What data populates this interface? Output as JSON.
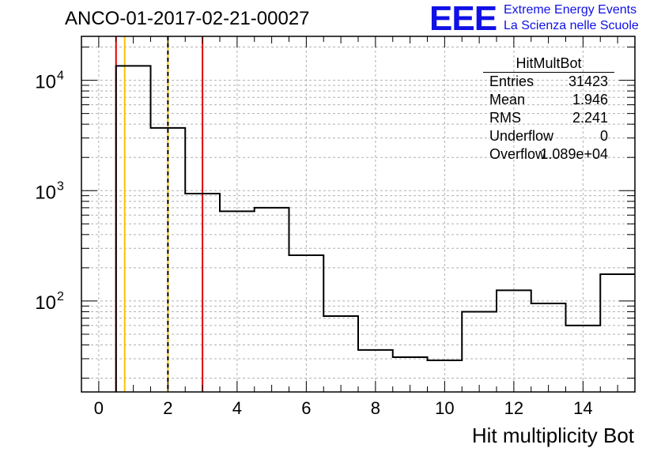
{
  "title": "ANCO-01-2017-02-21-00027",
  "logo": {
    "mark": "EEE",
    "line1": "Extreme Energy Events",
    "line2": "La Scienza nelle Scuole",
    "color": "#1010e6"
  },
  "stats_box": {
    "title": "HitMultBot",
    "rows": [
      {
        "label": "Entries",
        "value": "31423"
      },
      {
        "label": "Mean",
        "value": "1.946"
      },
      {
        "label": "RMS",
        "value": "2.241"
      },
      {
        "label": "Underflow",
        "value": "0"
      },
      {
        "label": "Overflow",
        "value": "1.089e+04"
      }
    ]
  },
  "chart_data": {
    "type": "histogram",
    "xlabel": "Hit multiplicity Bot",
    "ylabel": "",
    "log_y": true,
    "xlim": [
      -0.5,
      15.5
    ],
    "ylim": [
      15,
      25000
    ],
    "grid": true,
    "x_ticks": [
      "0",
      "2",
      "4",
      "6",
      "8",
      "10",
      "12",
      "14"
    ],
    "y_ticks": [
      {
        "value": 100,
        "base": "10",
        "exp": "2"
      },
      {
        "value": 1000,
        "base": "10",
        "exp": "3"
      },
      {
        "value": 10000,
        "base": "10",
        "exp": "4"
      }
    ],
    "bin_edges": [
      0.5,
      1.5,
      2.5,
      3.5,
      4.5,
      5.5,
      6.5,
      7.5,
      8.5,
      9.5,
      10.5,
      11.5,
      12.5,
      13.5,
      14.5,
      15.5
    ],
    "counts": [
      13500,
      3700,
      940,
      650,
      700,
      260,
      73,
      36,
      31,
      29,
      80,
      125,
      95,
      60,
      175
    ],
    "vertical_lines": [
      {
        "x": 0.5,
        "color": "#e00000",
        "style": "solid"
      },
      {
        "x": 0.75,
        "color": "#ffc000",
        "style": "solid"
      },
      {
        "x": 2.0,
        "color": "#ffc000",
        "style": "solid"
      },
      {
        "x": 2.0,
        "color": "#000000",
        "style": "dashed"
      },
      {
        "x": 3.0,
        "color": "#e00000",
        "style": "solid"
      }
    ]
  }
}
